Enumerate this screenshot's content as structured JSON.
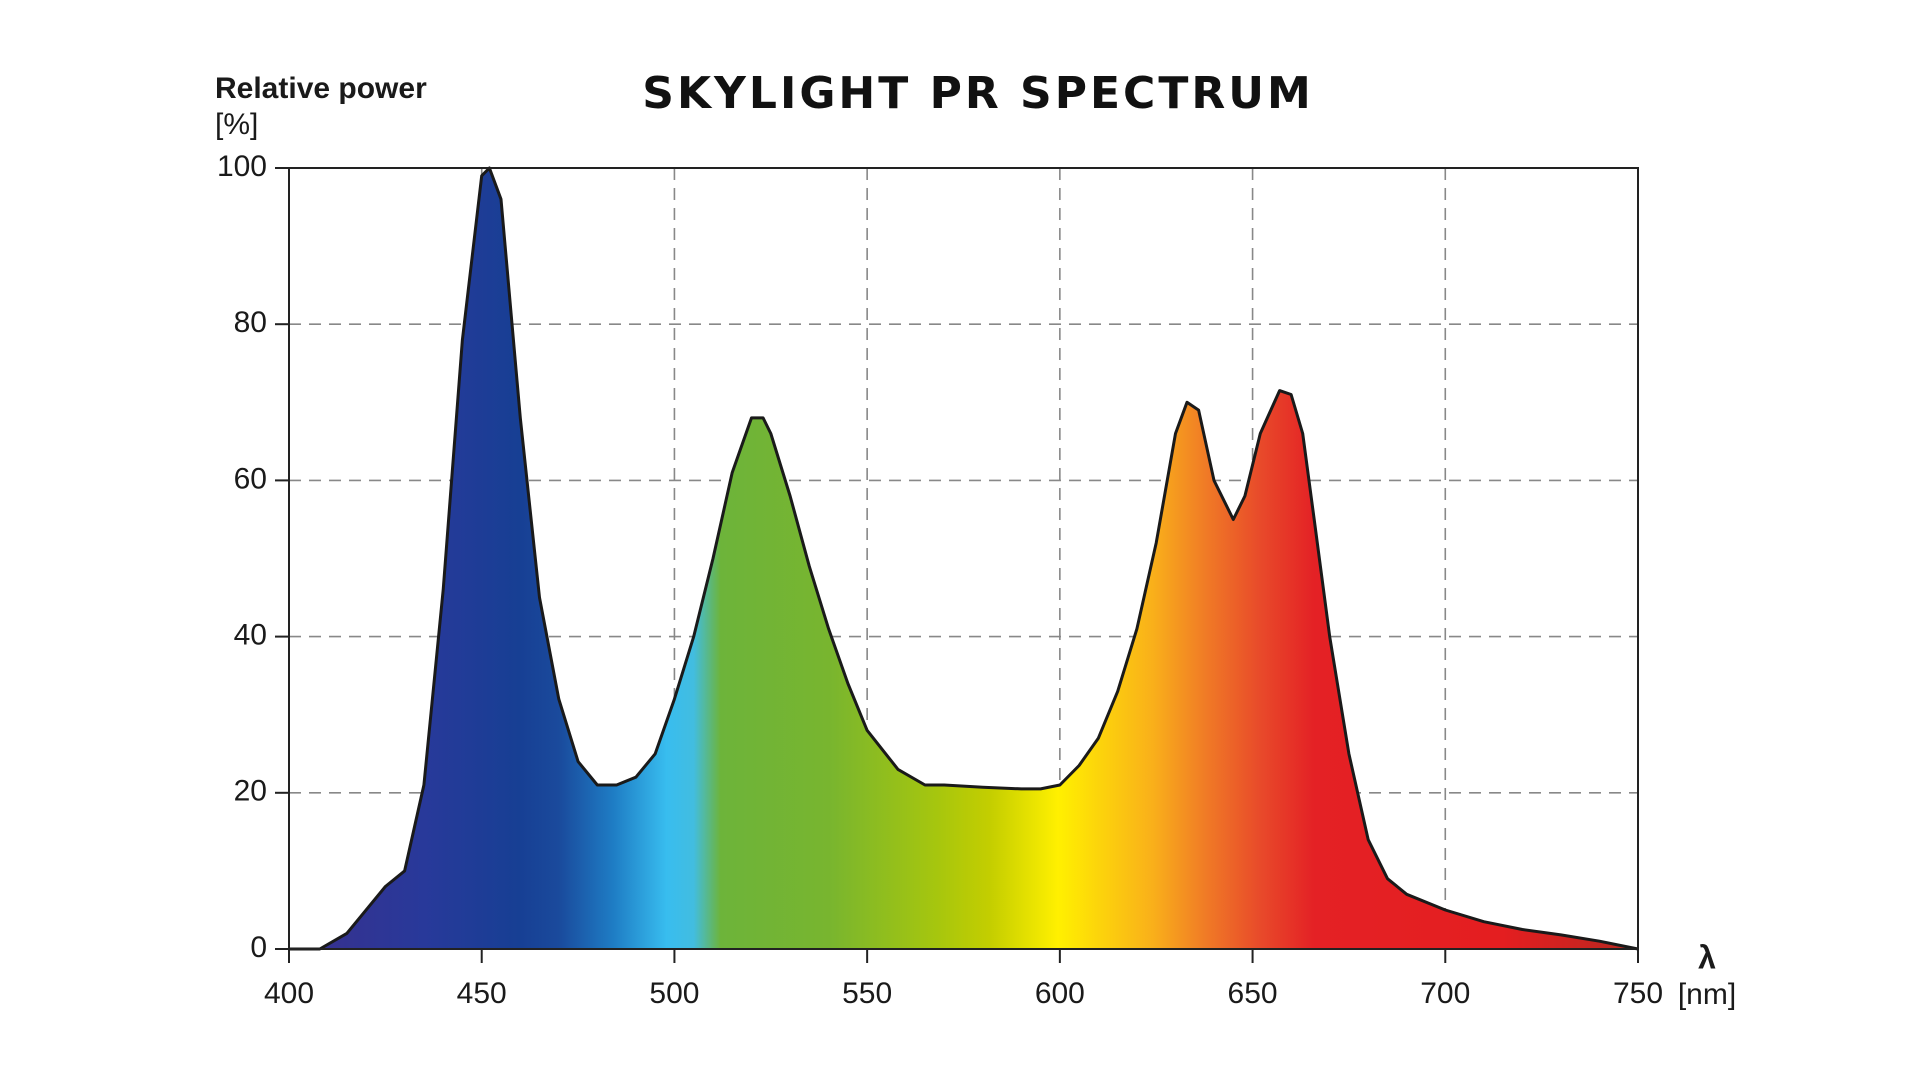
{
  "chart_data": {
    "type": "area",
    "title": "SKYLIGHT PR SPECTRUM",
    "y_label": "Relative power",
    "y_unit": "[%]",
    "x_label": "λ",
    "x_unit": "[nm]",
    "x": [
      400,
      408,
      415,
      425,
      430,
      435,
      440,
      445,
      450,
      452,
      455,
      460,
      465,
      470,
      475,
      480,
      485,
      490,
      495,
      500,
      505,
      510,
      515,
      520,
      523,
      525,
      530,
      535,
      540,
      545,
      550,
      558,
      565,
      570,
      580,
      590,
      595,
      600,
      605,
      610,
      615,
      620,
      625,
      630,
      633,
      636,
      640,
      645,
      648,
      652,
      657,
      660,
      663,
      666,
      670,
      675,
      680,
      685,
      690,
      700,
      710,
      720,
      730,
      740,
      750
    ],
    "values": [
      0,
      0,
      2,
      8,
      10,
      21,
      46,
      78,
      99,
      100,
      96,
      68,
      45,
      32,
      24,
      21,
      21,
      22,
      25,
      32,
      40,
      50,
      61,
      68,
      68,
      66,
      58,
      49,
      41,
      34,
      28,
      23,
      21,
      21,
      20.7,
      20.5,
      20.5,
      21,
      23.5,
      27,
      33,
      41,
      52,
      66,
      70,
      69,
      60,
      55,
      58,
      66,
      71.5,
      71,
      66,
      55,
      40,
      25,
      14,
      9,
      7,
      5,
      3.5,
      2.5,
      1.8,
      1,
      0
    ],
    "xlim": [
      400,
      750
    ],
    "ylim": [
      0,
      100
    ],
    "xticks": [
      400,
      450,
      500,
      550,
      600,
      650,
      700,
      750
    ],
    "yticks": [
      0,
      20,
      40,
      60,
      80,
      100
    ],
    "grid": true
  }
}
